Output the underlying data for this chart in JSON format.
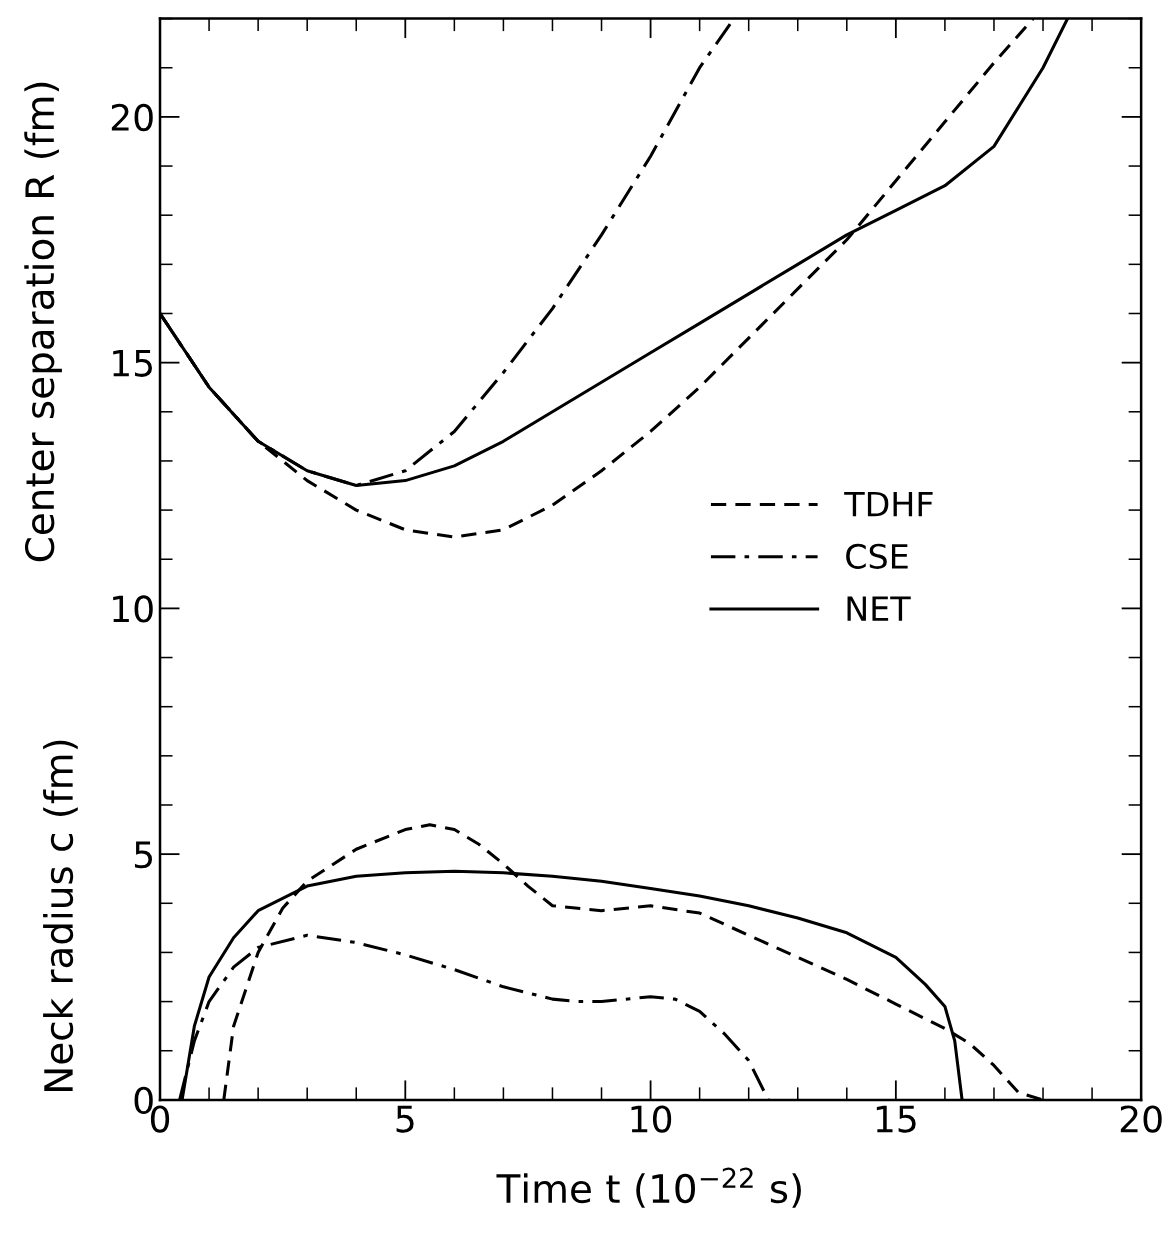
{
  "chart_data": {
    "type": "line",
    "xlabel": "Time t (10$^{−22}$ s)",
    "ylabel": "Center separation R (fm)",
    "annotations": [
      "Neck radius c (fm)"
    ],
    "xlim": [
      0,
      20
    ],
    "ylim": [
      0,
      22
    ],
    "xticks": [
      0,
      {
        "value": 1,
        "label": null
      },
      {
        "value": 2,
        "label": null
      },
      {
        "value": 3,
        "label": null
      },
      {
        "value": 4,
        "label": null
      },
      5,
      {
        "value": 6,
        "label": null
      },
      {
        "value": 7,
        "label": null
      },
      {
        "value": 8,
        "label": null
      },
      {
        "value": 9,
        "label": null
      },
      10,
      {
        "value": 11,
        "label": null
      },
      {
        "value": 12,
        "label": null
      },
      {
        "value": 13,
        "label": null
      },
      {
        "value": 14,
        "label": null
      },
      15,
      {
        "value": 16,
        "label": null
      },
      {
        "value": 17,
        "label": null
      },
      {
        "value": 18,
        "label": null
      },
      {
        "value": 19,
        "label": null
      },
      20
    ],
    "yticks": [
      0,
      {
        "value": 1,
        "label": null
      },
      {
        "value": 2,
        "label": null
      },
      {
        "value": 3,
        "label": null
      },
      {
        "value": 4,
        "label": null
      },
      5,
      {
        "value": 6,
        "label": null
      },
      {
        "value": 7,
        "label": null
      },
      {
        "value": 8,
        "label": null
      },
      {
        "value": 9,
        "label": null
      },
      10,
      {
        "value": 11,
        "label": null
      },
      {
        "value": 12,
        "label": null
      },
      {
        "value": 13,
        "label": null
      },
      {
        "value": 14,
        "label": null
      },
      15,
      {
        "value": 16,
        "label": null
      },
      {
        "value": 17,
        "label": null
      },
      {
        "value": 18,
        "label": null
      },
      {
        "value": 19,
        "label": null
      },
      20,
      {
        "value": 21,
        "label": null
      },
      {
        "value": 22,
        "label": null
      }
    ],
    "grid": false,
    "legend": "center right",
    "series": [
      {
        "name": "TDHF",
        "color": "#000000",
        "line_style": "dashed",
        "x": [
          0,
          1,
          2,
          3,
          4,
          5,
          6,
          7,
          8,
          9,
          10,
          11,
          12,
          13,
          14,
          15,
          16,
          17,
          17.8
        ],
        "values": [
          16,
          14.5,
          13.4,
          12.6,
          12.0,
          11.6,
          11.45,
          11.6,
          12.1,
          12.8,
          13.6,
          14.5,
          15.5,
          16.5,
          17.5,
          18.7,
          19.9,
          21.1,
          22
        ]
      },
      {
        "name": "CSE",
        "color": "#000000",
        "line_style": "dashdot",
        "x": [
          0,
          1,
          2,
          3,
          4,
          5,
          6,
          7,
          8,
          9,
          10,
          11,
          11.7
        ],
        "values": [
          16,
          14.5,
          13.4,
          12.8,
          12.5,
          12.8,
          13.6,
          14.8,
          16.1,
          17.6,
          19.2,
          21.0,
          22
        ]
      },
      {
        "name": "NET",
        "color": "#000000",
        "line_style": "solid",
        "x": [
          0,
          1,
          2,
          3,
          4,
          5,
          6,
          7,
          8,
          9,
          10,
          11,
          12,
          13,
          14,
          15,
          16,
          17,
          18,
          18.5
        ],
        "values": [
          16,
          14.5,
          13.4,
          12.8,
          12.5,
          12.6,
          12.9,
          13.4,
          14.0,
          14.6,
          15.2,
          15.8,
          16.4,
          17.0,
          17.6,
          18.1,
          18.6,
          19.4,
          21.0,
          22
        ]
      },
      {
        "color": "#000000",
        "line_style": "dashed",
        "x": [
          1.3,
          1.5,
          2,
          2.5,
          3,
          4,
          5,
          5.5,
          6,
          6.5,
          7,
          7.5,
          8,
          9,
          10,
          11,
          12,
          13,
          14,
          15,
          16,
          16.5,
          17,
          17.5,
          18
        ],
        "values": [
          0,
          1.5,
          3.0,
          3.9,
          4.45,
          5.1,
          5.5,
          5.6,
          5.5,
          5.2,
          4.8,
          4.35,
          3.95,
          3.85,
          3.95,
          3.8,
          3.35,
          2.9,
          2.45,
          1.95,
          1.45,
          1.15,
          0.7,
          0.15,
          0
        ]
      },
      {
        "color": "#000000",
        "line_style": "dashdot",
        "x": [
          0.4,
          0.7,
          1,
          1.5,
          2,
          3,
          4,
          5,
          6,
          7,
          8,
          8.5,
          9,
          10,
          10.5,
          11,
          11.5,
          12,
          12.4
        ],
        "values": [
          0,
          1.2,
          2.0,
          2.7,
          3.1,
          3.35,
          3.2,
          2.95,
          2.65,
          2.3,
          2.05,
          2.0,
          2.0,
          2.1,
          2.05,
          1.8,
          1.35,
          0.8,
          0
        ]
      },
      {
        "color": "#000000",
        "line_style": "solid",
        "x": [
          0.45,
          0.7,
          1,
          1.5,
          2,
          3,
          4,
          5,
          6,
          7,
          8,
          9,
          10,
          11,
          12,
          13,
          14,
          15,
          15.6,
          16,
          16.2,
          16.35
        ],
        "values": [
          0,
          1.5,
          2.5,
          3.3,
          3.85,
          4.35,
          4.55,
          4.62,
          4.65,
          4.62,
          4.55,
          4.45,
          4.3,
          4.15,
          3.95,
          3.7,
          3.4,
          2.9,
          2.35,
          1.9,
          1.2,
          0
        ]
      }
    ]
  }
}
